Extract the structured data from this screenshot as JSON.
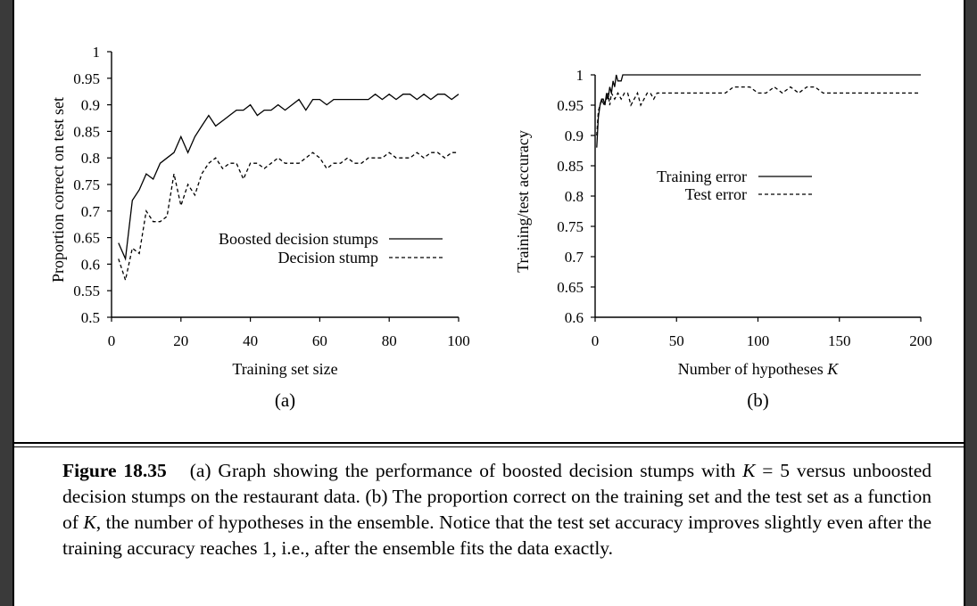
{
  "chart_data": [
    {
      "type": "line",
      "panel_label": "(a)",
      "xlabel": "Training set size",
      "ylabel": "Proportion correct on test set",
      "xlim": [
        0,
        100
      ],
      "ylim": [
        0.5,
        1
      ],
      "xticks": [
        "0",
        "20",
        "40",
        "60",
        "80",
        "100"
      ],
      "yticks": [
        "0.5",
        "0.55",
        "0.6",
        "0.65",
        "0.7",
        "0.75",
        "0.8",
        "0.85",
        "0.9",
        "0.95",
        "1"
      ],
      "legend_position": "center-right",
      "grid": false,
      "series": [
        {
          "name": "Boosted decision stumps",
          "style": "solid",
          "x": [
            2,
            4,
            6,
            8,
            10,
            12,
            14,
            16,
            18,
            20,
            22,
            24,
            26,
            28,
            30,
            32,
            34,
            36,
            38,
            40,
            42,
            44,
            46,
            48,
            50,
            52,
            54,
            56,
            58,
            60,
            62,
            64,
            66,
            68,
            70,
            72,
            74,
            76,
            78,
            80,
            82,
            84,
            86,
            88,
            90,
            92,
            94,
            96,
            98,
            100
          ],
          "y": [
            0.64,
            0.61,
            0.72,
            0.74,
            0.77,
            0.76,
            0.79,
            0.8,
            0.81,
            0.84,
            0.81,
            0.84,
            0.86,
            0.88,
            0.86,
            0.87,
            0.88,
            0.89,
            0.89,
            0.9,
            0.88,
            0.89,
            0.89,
            0.9,
            0.89,
            0.9,
            0.91,
            0.89,
            0.91,
            0.91,
            0.9,
            0.91,
            0.91,
            0.91,
            0.91,
            0.91,
            0.91,
            0.92,
            0.91,
            0.92,
            0.91,
            0.92,
            0.92,
            0.91,
            0.92,
            0.91,
            0.92,
            0.92,
            0.91,
            0.92
          ]
        },
        {
          "name": "Decision stump",
          "style": "dashed",
          "x": [
            2,
            4,
            6,
            8,
            10,
            12,
            14,
            16,
            18,
            20,
            22,
            24,
            26,
            28,
            30,
            32,
            34,
            36,
            38,
            40,
            42,
            44,
            46,
            48,
            50,
            52,
            54,
            56,
            58,
            60,
            62,
            64,
            66,
            68,
            70,
            72,
            74,
            76,
            78,
            80,
            82,
            84,
            86,
            88,
            90,
            92,
            94,
            96,
            98,
            100
          ],
          "y": [
            0.61,
            0.57,
            0.63,
            0.62,
            0.7,
            0.68,
            0.68,
            0.69,
            0.77,
            0.71,
            0.75,
            0.73,
            0.77,
            0.79,
            0.8,
            0.78,
            0.79,
            0.79,
            0.76,
            0.79,
            0.79,
            0.78,
            0.79,
            0.8,
            0.79,
            0.79,
            0.79,
            0.8,
            0.81,
            0.8,
            0.78,
            0.79,
            0.79,
            0.8,
            0.79,
            0.79,
            0.8,
            0.8,
            0.8,
            0.81,
            0.8,
            0.8,
            0.8,
            0.81,
            0.8,
            0.81,
            0.81,
            0.8,
            0.81,
            0.81
          ]
        }
      ]
    },
    {
      "type": "line",
      "panel_label": "(b)",
      "xlabel": "Number of hypotheses K",
      "ylabel": "Training/test accuracy",
      "xlim": [
        0,
        200
      ],
      "ylim": [
        0.6,
        1
      ],
      "xticks": [
        "0",
        "50",
        "100",
        "150",
        "200"
      ],
      "yticks": [
        "0.6",
        "0.65",
        "0.7",
        "0.75",
        "0.8",
        "0.85",
        "0.9",
        "0.95",
        "1"
      ],
      "legend_position": "center-right",
      "grid": false,
      "series": [
        {
          "name": "Training error",
          "style": "solid",
          "x": [
            1,
            2,
            3,
            4,
            5,
            6,
            7,
            8,
            9,
            10,
            11,
            12,
            13,
            14,
            15,
            16,
            17,
            18,
            19,
            20,
            200
          ],
          "y": [
            0.88,
            0.93,
            0.95,
            0.96,
            0.96,
            0.95,
            0.97,
            0.96,
            0.98,
            0.97,
            0.99,
            0.98,
            1.0,
            0.99,
            0.99,
            0.99,
            1.0,
            1.0,
            1.0,
            1.0,
            1.0
          ]
        },
        {
          "name": "Test error",
          "style": "dashed",
          "x": [
            1,
            2,
            3,
            4,
            5,
            6,
            7,
            8,
            9,
            10,
            12,
            14,
            16,
            18,
            20,
            22,
            24,
            26,
            28,
            30,
            32,
            34,
            36,
            38,
            40,
            60,
            80,
            85,
            90,
            95,
            100,
            105,
            110,
            115,
            120,
            125,
            130,
            135,
            140,
            160,
            180,
            200
          ],
          "y": [
            0.9,
            0.94,
            0.95,
            0.96,
            0.95,
            0.96,
            0.96,
            0.97,
            0.95,
            0.97,
            0.96,
            0.97,
            0.96,
            0.97,
            0.97,
            0.95,
            0.96,
            0.97,
            0.95,
            0.96,
            0.97,
            0.97,
            0.96,
            0.97,
            0.97,
            0.97,
            0.97,
            0.98,
            0.98,
            0.98,
            0.97,
            0.97,
            0.98,
            0.97,
            0.98,
            0.97,
            0.98,
            0.98,
            0.97,
            0.97,
            0.97,
            0.97
          ]
        }
      ]
    }
  ],
  "caption": {
    "label": "Figure 18.35",
    "text_1": "(a) Graph showing the performance of boosted decision stumps with ",
    "k_symbol": "K",
    "text_2": " = 5 versus unboosted decision stumps on the restaurant data. (b) The proportion correct on the training set and the test set as a function of ",
    "k_symbol_2": "K",
    "text_3": ", the number of hypotheses in the ensemble. Notice that the test set accuracy improves slightly even after the training accuracy reaches 1, i.e., after the ensemble fits the data exactly."
  }
}
